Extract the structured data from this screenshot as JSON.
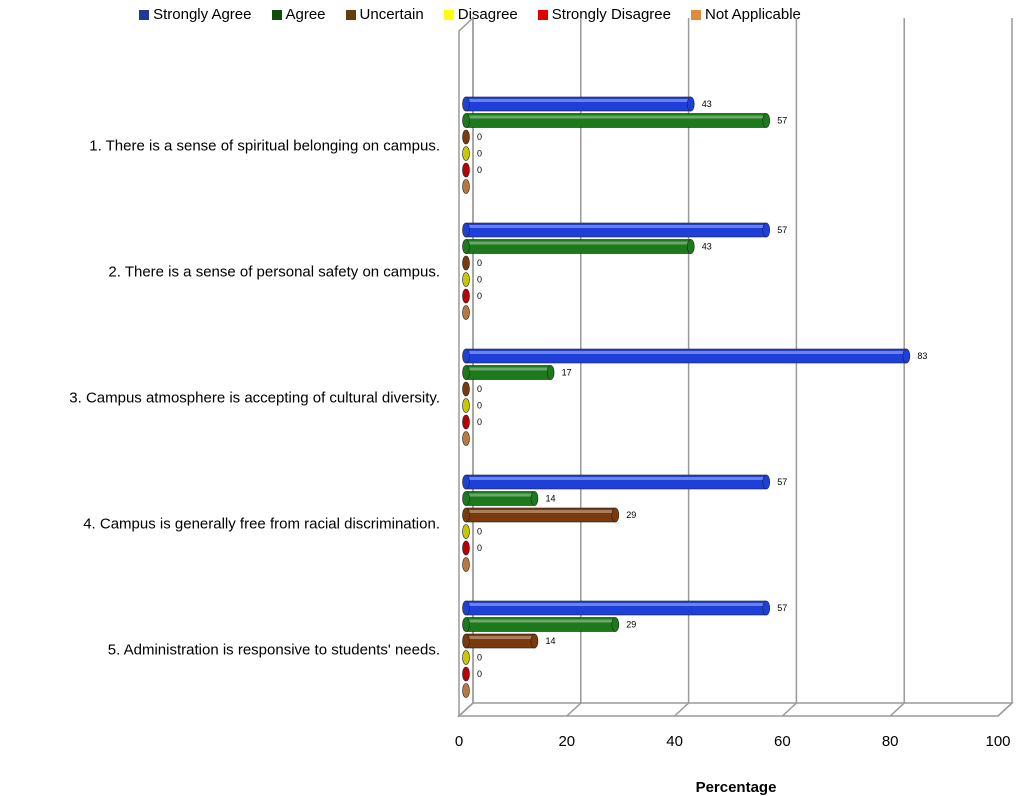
{
  "chart_data": {
    "type": "bar",
    "orientation": "horizontal",
    "title": "",
    "xlabel": "Percentage",
    "ylabel": "",
    "xlim": [
      0,
      100
    ],
    "xticks": [
      "0",
      "20",
      "40",
      "60",
      "80",
      "100"
    ],
    "grid": true,
    "legend_position": "top",
    "categories": [
      "1. There is a sense of spiritual belonging on campus.",
      "2. There is a sense of personal safety on campus.",
      "3. Campus atmosphere is accepting of cultural diversity.",
      "4. Campus is generally free from racial discrimination.",
      "5. Administration is responsive to students' needs."
    ],
    "series": [
      {
        "name": "Strongly Agree",
        "color": "#1f3fd9",
        "legend_color": "#1f3a93",
        "values": [
          43,
          57,
          83,
          57,
          57
        ]
      },
      {
        "name": "Agree",
        "color": "#1c7a1c",
        "legend_color": "#0f4d0f",
        "values": [
          57,
          43,
          17,
          14,
          29
        ]
      },
      {
        "name": "Uncertain",
        "color": "#7a3a0c",
        "legend_color": "#6b3a0a",
        "values": [
          0,
          0,
          0,
          29,
          14
        ]
      },
      {
        "name": "Disagree",
        "color": "#c8c800",
        "legend_color": "#ffff00",
        "values": [
          0,
          0,
          0,
          0,
          0
        ]
      },
      {
        "name": "Strongly Disagree",
        "color": "#b80000",
        "legend_color": "#e00000",
        "values": [
          0,
          0,
          0,
          0,
          0
        ]
      },
      {
        "name": "Not Applicable",
        "color": "#b87840",
        "legend_color": "#e08a3c",
        "values": [
          null,
          null,
          null,
          null,
          null
        ]
      }
    ]
  }
}
